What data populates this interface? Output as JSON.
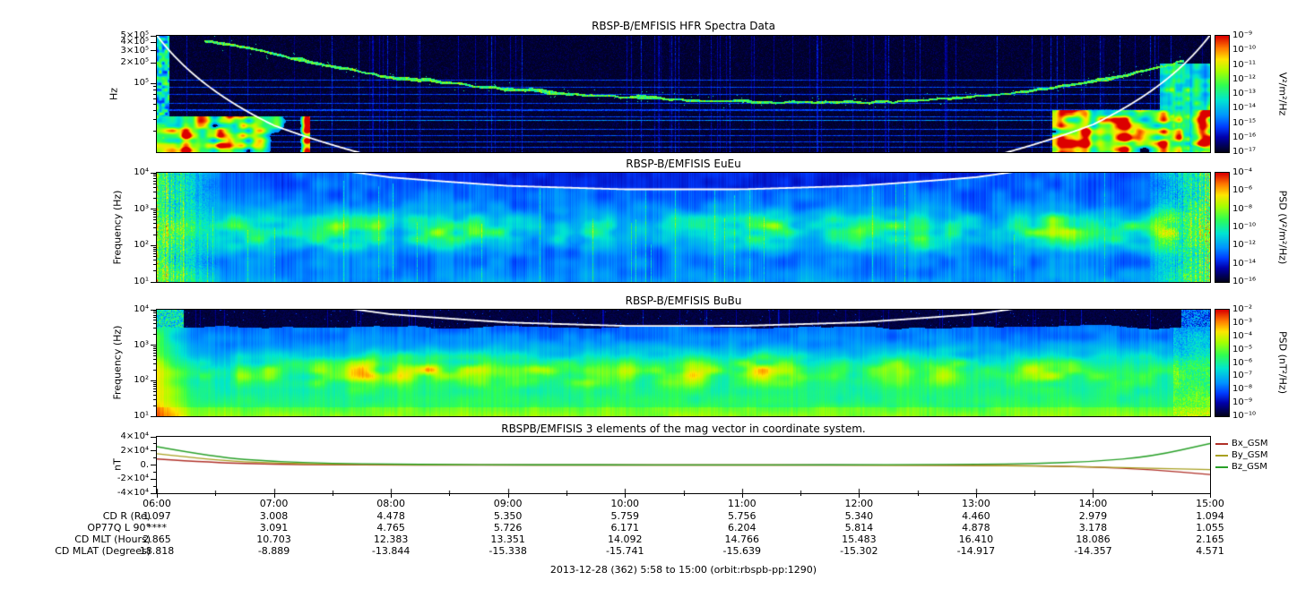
{
  "page": {
    "footer": "2013-12-28 (362) 5:58 to 15:00 (orbit:rbspb-pp:1290)"
  },
  "time_axis": {
    "tick_labels": [
      "06:00",
      "07:00",
      "08:00",
      "09:00",
      "10:00",
      "11:00",
      "12:00",
      "13:00",
      "14:00",
      "15:00"
    ]
  },
  "ephemeris": {
    "rows": [
      {
        "label": "CD R (Re)",
        "values": [
          "1.097",
          "3.008",
          "4.478",
          "5.350",
          "5.759",
          "5.756",
          "5.340",
          "4.460",
          "2.979",
          "1.094"
        ]
      },
      {
        "label": "OP77Q L 90°",
        "values": [
          "****",
          "3.091",
          "4.765",
          "5.726",
          "6.171",
          "6.204",
          "5.814",
          "4.878",
          "3.178",
          "1.055"
        ]
      },
      {
        "label": "CD MLT (Hours)",
        "values": [
          "2.865",
          "10.703",
          "12.383",
          "13.351",
          "14.092",
          "14.766",
          "15.483",
          "16.410",
          "18.086",
          "2.165"
        ]
      },
      {
        "label": "CD MLAT (Degrees)",
        "values": [
          "18.818",
          "-8.889",
          "-13.844",
          "-15.338",
          "-15.741",
          "-15.639",
          "-15.302",
          "-14.917",
          "-14.357",
          "4.571"
        ]
      }
    ]
  },
  "fce_overlay": {
    "description": "white overlay: electron cyclotron frequency fce = factor / R^3",
    "factor_hz_re3": 670000,
    "R_re_by_hour": [
      1.097,
      3.008,
      4.478,
      5.35,
      5.759,
      5.756,
      5.34,
      4.46,
      2.979,
      1.094
    ]
  },
  "colormap": [
    [
      0,
      2,
      2,
      20
    ],
    [
      0.13,
      0,
      0,
      170
    ],
    [
      0.22,
      0,
      60,
      255
    ],
    [
      0.32,
      0,
      150,
      255
    ],
    [
      0.45,
      0,
      230,
      210
    ],
    [
      0.58,
      50,
      255,
      80
    ],
    [
      0.7,
      170,
      255,
      0
    ],
    [
      0.8,
      255,
      230,
      0
    ],
    [
      0.9,
      255,
      120,
      0
    ],
    [
      1,
      220,
      0,
      0
    ]
  ],
  "chart_data": [
    {
      "type": "heatmap",
      "title": "RBSP-B/EMFISIS  HFR Spectra Data",
      "ylabel": "Hz",
      "yscale": "log",
      "ylim_hz": [
        10000,
        500000
      ],
      "yticks": [
        {
          "label": "5×10⁵",
          "value": 500000
        },
        {
          "label": "4×10⁵",
          "value": 400000
        },
        {
          "label": "3×10⁵",
          "value": 300000
        },
        {
          "label": "2×10⁵",
          "value": 200000
        },
        {
          "label": "10⁵",
          "value": 100000
        }
      ],
      "colorbar": {
        "label": "V²/m²/Hz",
        "tick_labels": [
          "10⁻⁹",
          "10⁻¹⁰",
          "10⁻¹¹",
          "10⁻¹²",
          "10⁻¹³",
          "10⁻¹⁴",
          "10⁻¹⁵",
          "10⁻¹⁶",
          "10⁻¹⁷"
        ]
      },
      "x_range": [
        "06:00",
        "15:00"
      ],
      "uh_trace_log10hz": [
        [
          0.05,
          5.62
        ],
        [
          0.1,
          5.48
        ],
        [
          0.15,
          5.3
        ],
        [
          0.22,
          5.1
        ],
        [
          0.3,
          4.97
        ],
        [
          0.4,
          4.84
        ],
        [
          0.5,
          4.76
        ],
        [
          0.62,
          4.72
        ],
        [
          0.72,
          4.74
        ],
        [
          0.8,
          4.84
        ],
        [
          0.87,
          4.98
        ],
        [
          0.92,
          5.12
        ],
        [
          0.97,
          5.32
        ]
      ],
      "features": [
        "near-black background with narrowband interference lines",
        "green upper-hybrid emission band drifting from ~400 kHz down to ~60 kHz near apogee and back up",
        "broadband bursts below ~35 kHz near both perigees",
        "white fce overlay curve"
      ]
    },
    {
      "type": "heatmap",
      "title": "RBSP-B/EMFISIS  EuEu",
      "ylabel": "Frequency (Hz)",
      "yscale": "log",
      "ylim_hz": [
        10,
        10000
      ],
      "yticks": [
        {
          "label": "10⁴",
          "value": 10000
        },
        {
          "label": "10³",
          "value": 1000
        },
        {
          "label": "10²",
          "value": 100
        },
        {
          "label": "10¹",
          "value": 10
        }
      ],
      "colorbar": {
        "label": "PSD (V²/m²/Hz)",
        "tick_labels": [
          "10⁻⁴",
          "10⁻⁶",
          "10⁻⁸",
          "10⁻¹⁰",
          "10⁻¹²",
          "10⁻¹⁴",
          "10⁻¹⁶"
        ]
      },
      "x_range": [
        "06:00",
        "15:00"
      ],
      "features": [
        "blue broadband field with dense vertical striations",
        "enhanced green wave band near 100-800 Hz",
        "intense full-band bursts near both perigees",
        "darker blue above white fce curve"
      ]
    },
    {
      "type": "heatmap",
      "title": "RBSP-B/EMFISIS  BuBu",
      "ylabel": "Frequency (Hz)",
      "yscale": "log",
      "ylim_hz": [
        10,
        10000
      ],
      "yticks": [
        {
          "label": "10⁴",
          "value": 10000
        },
        {
          "label": "10³",
          "value": 1000
        },
        {
          "label": "10²",
          "value": 100
        },
        {
          "label": "10¹",
          "value": 10
        }
      ],
      "colorbar": {
        "label": "PSD (nT²/Hz)",
        "tick_labels": [
          "10⁻²",
          "10⁻³",
          "10⁻⁴",
          "10⁻⁵",
          "10⁻⁶",
          "10⁻⁷",
          "10⁻⁸",
          "10⁻⁹",
          "10⁻¹⁰"
        ]
      },
      "x_range": [
        "06:00",
        "15:00"
      ],
      "features": [
        "black above ~2-3 kHz",
        "green hiss band 100-600 Hz",
        "power increasing toward low frequency (green/yellow at bottom)",
        "white fce overlay curve"
      ]
    },
    {
      "type": "line",
      "title": "RBSPB/EMFISIS  3 elements of the mag vector in coordinate system.",
      "ylabel": "nT",
      "ylim": [
        -40000,
        40000
      ],
      "yticks": [
        {
          "label": "4×10⁴",
          "value": 40000
        },
        {
          "label": "2×10⁴",
          "value": 20000
        },
        {
          "label": "0.",
          "value": 0
        },
        {
          "label": "-2×10⁴",
          "value": -20000
        },
        {
          "label": "-4×10⁴",
          "value": -40000
        }
      ],
      "x_hours": [
        6,
        6.5,
        7,
        7.5,
        8,
        8.5,
        9,
        9.5,
        10,
        10.5,
        11,
        11.5,
        12,
        12.5,
        13,
        13.5,
        14,
        14.5,
        15
      ],
      "series": [
        {
          "name": "Bx_GSM",
          "color": "#b03028",
          "values": [
            8500,
            3200,
            1100,
            350,
            80,
            -20,
            -55,
            -70,
            -75,
            -70,
            -60,
            -55,
            -70,
            -160,
            -420,
            -1100,
            -2700,
            -6500,
            -13500
          ]
        },
        {
          "name": "By_GSM",
          "color": "#a8a020",
          "values": [
            16000,
            6500,
            2800,
            1100,
            450,
            180,
            60,
            10,
            -20,
            -45,
            -70,
            -100,
            -160,
            -300,
            -650,
            -1400,
            -2800,
            -4600,
            -6500
          ]
        },
        {
          "name": "Bz_GSM",
          "color": "#28a028",
          "values": [
            26000,
            11000,
            5000,
            2400,
            1200,
            650,
            380,
            260,
            210,
            190,
            200,
            240,
            330,
            520,
            950,
            2000,
            4800,
            12000,
            30500
          ]
        }
      ],
      "legend": [
        "Bx_GSM",
        "By_GSM",
        "Bz_GSM"
      ],
      "legend_position": "right"
    }
  ]
}
